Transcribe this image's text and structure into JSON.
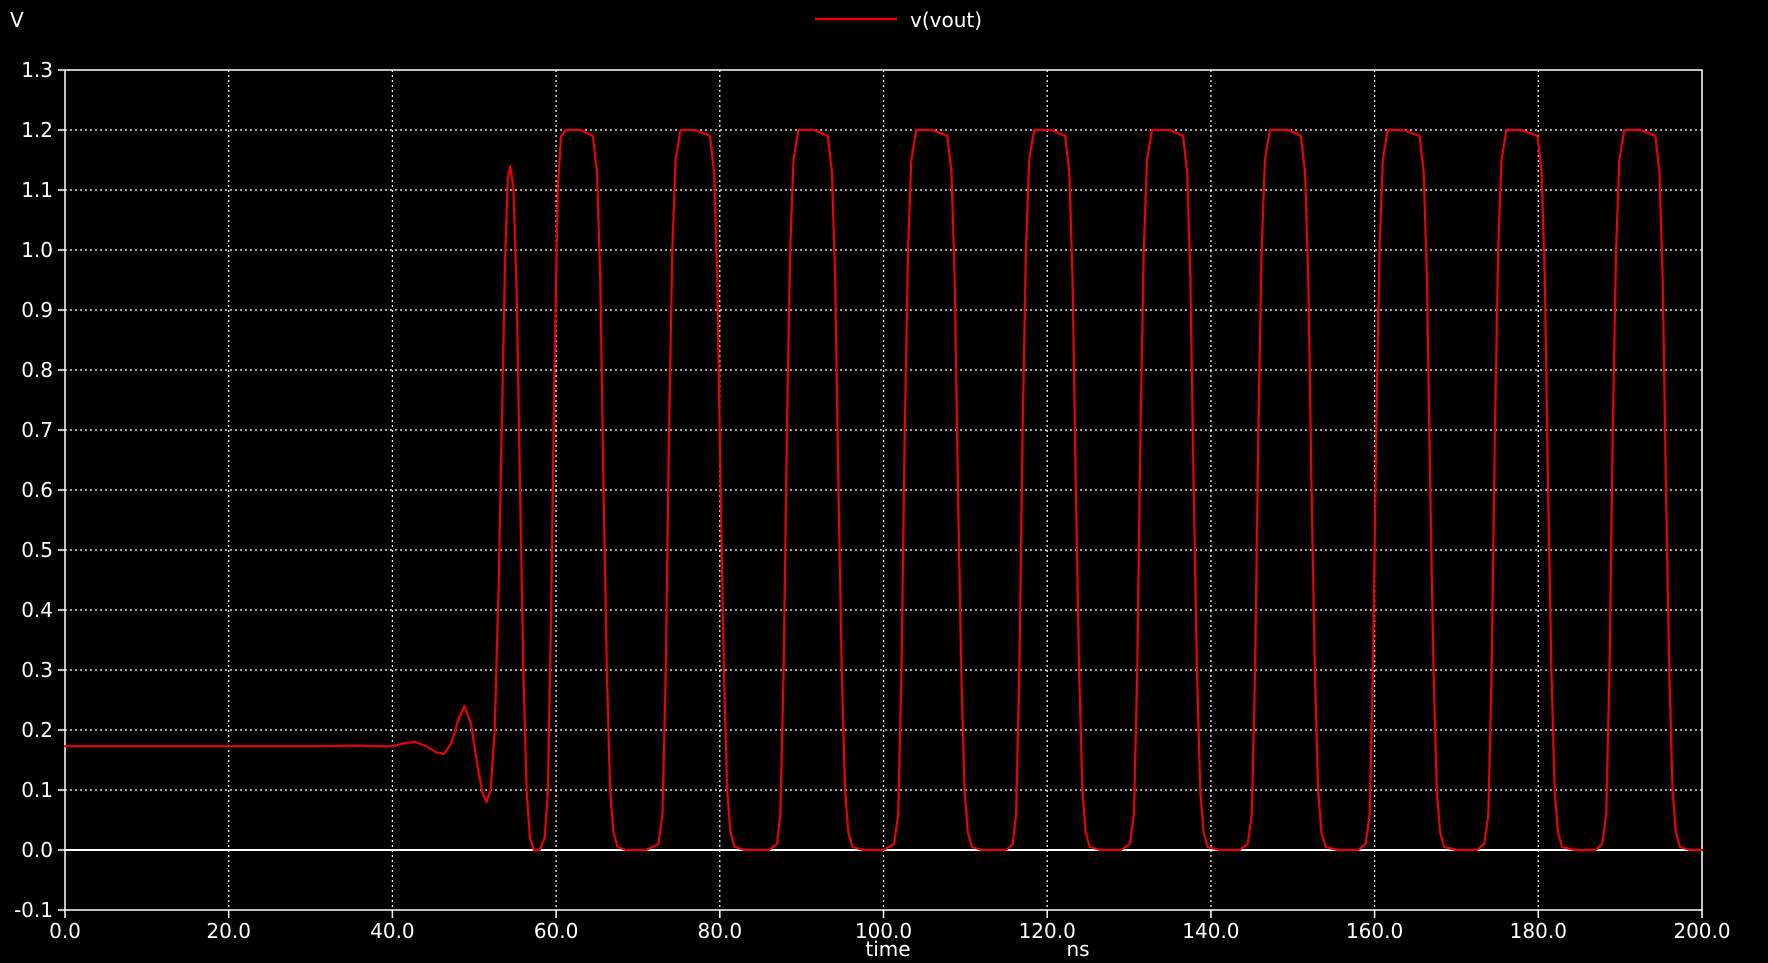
{
  "chart_data": {
    "type": "line",
    "ylabel": "V",
    "xlabel": "time",
    "xunit": "ns",
    "xlim": [
      0,
      200
    ],
    "ylim": [
      -0.1,
      1.3
    ],
    "xticks": [
      "0.0",
      "20.0",
      "40.0",
      "60.0",
      "80.0",
      "100.0",
      "120.0",
      "140.0",
      "160.0",
      "180.0",
      "200.0"
    ],
    "yticks": [
      "-0.1",
      "0.0",
      "0.1",
      "0.2",
      "0.3",
      "0.4",
      "0.5",
      "0.6",
      "0.7",
      "0.8",
      "0.9",
      "1.0",
      "1.1",
      "1.2",
      "1.3"
    ],
    "grid": true,
    "legend_position": "top-center",
    "series": [
      {
        "name": "v(vout)",
        "color": "#e8000b",
        "x": [
          0,
          10,
          20,
          30,
          36,
          38,
          40,
          41.5,
          42.8,
          44,
          45.3,
          46.3,
          47.2,
          48,
          48.8,
          49.6,
          50.4,
          51,
          51.5,
          52,
          52.5,
          53,
          53.5,
          53.8,
          54.1,
          54.4,
          54.8,
          55.2,
          55.6,
          56,
          56.4,
          56.8,
          57.3,
          58,
          58.6,
          59,
          59.4,
          59.8,
          60.2,
          60.6,
          61.2,
          63,
          64.5,
          65,
          65.4,
          65.8,
          66.2,
          66.6,
          67,
          67.5,
          68.5,
          71,
          72.5,
          73,
          73.4,
          73.8,
          74.2,
          74.6,
          75.2,
          77,
          78.8,
          79.3,
          79.7,
          80.1,
          80.5,
          80.9,
          81.3,
          81.8,
          83,
          86,
          87,
          87.4,
          87.8,
          88.2,
          88.6,
          89,
          89.6,
          91.5,
          93.2,
          93.7,
          94.1,
          94.5,
          94.9,
          95.3,
          95.7,
          96.2,
          97.5,
          100,
          101.3,
          101.8,
          102.2,
          102.6,
          103,
          103.4,
          104,
          106,
          107.8,
          108.3,
          108.7,
          109.1,
          109.5,
          109.9,
          110.3,
          110.8,
          112,
          115,
          115.8,
          116.2,
          116.6,
          117,
          117.4,
          117.8,
          118.4,
          120.5,
          122.2,
          122.7,
          123.1,
          123.5,
          123.9,
          124.3,
          124.7,
          125.2,
          126.5,
          129,
          130.1,
          130.6,
          131,
          131.4,
          131.8,
          132.2,
          132.8,
          135,
          136.6,
          137.1,
          137.5,
          137.9,
          138.3,
          138.7,
          139.1,
          139.6,
          141,
          143.5,
          144.5,
          145,
          145.4,
          145.8,
          146.2,
          146.6,
          147.2,
          149.5,
          151,
          151.5,
          151.9,
          152.3,
          152.7,
          153.1,
          153.5,
          154,
          155.5,
          158,
          158.9,
          159.4,
          159.8,
          160.2,
          160.6,
          161,
          161.6,
          163.5,
          165.5,
          166,
          166.4,
          166.8,
          167.2,
          167.6,
          168,
          168.5,
          170,
          172.5,
          173.4,
          173.9,
          174.3,
          174.7,
          175.1,
          175.5,
          176.1,
          178,
          179.9,
          180.4,
          180.8,
          181.2,
          181.6,
          182,
          182.4,
          182.9,
          184.5,
          187,
          187.8,
          188.3,
          188.7,
          189.1,
          189.5,
          189.9,
          190.5,
          192.5,
          194.3,
          194.8,
          195.2,
          195.6,
          196,
          196.4,
          196.8,
          197.3,
          198.5,
          200
        ],
        "values": [
          0.173,
          0.173,
          0.173,
          0.173,
          0.174,
          0.173,
          0.173,
          0.178,
          0.18,
          0.174,
          0.163,
          0.16,
          0.178,
          0.215,
          0.24,
          0.21,
          0.14,
          0.095,
          0.08,
          0.1,
          0.2,
          0.45,
          0.8,
          1.0,
          1.12,
          1.14,
          1.1,
          0.92,
          0.6,
          0.3,
          0.1,
          0.02,
          0.0,
          0.0,
          0.02,
          0.1,
          0.4,
          0.8,
          1.1,
          1.19,
          1.2,
          1.2,
          1.19,
          1.13,
          0.95,
          0.6,
          0.3,
          0.1,
          0.03,
          0.005,
          0.0,
          0.0,
          0.01,
          0.06,
          0.3,
          0.7,
          1.0,
          1.15,
          1.2,
          1.2,
          1.19,
          1.13,
          0.95,
          0.6,
          0.3,
          0.1,
          0.03,
          0.005,
          0.0,
          0.0,
          0.01,
          0.06,
          0.3,
          0.7,
          1.0,
          1.15,
          1.2,
          1.2,
          1.19,
          1.13,
          0.95,
          0.6,
          0.3,
          0.1,
          0.03,
          0.005,
          0.0,
          0.0,
          0.01,
          0.06,
          0.3,
          0.7,
          1.0,
          1.15,
          1.2,
          1.2,
          1.19,
          1.13,
          0.95,
          0.6,
          0.3,
          0.1,
          0.03,
          0.005,
          0.0,
          0.0,
          0.01,
          0.06,
          0.3,
          0.7,
          1.0,
          1.15,
          1.2,
          1.2,
          1.19,
          1.13,
          0.95,
          0.6,
          0.3,
          0.1,
          0.03,
          0.005,
          0.0,
          0.0,
          0.01,
          0.06,
          0.3,
          0.7,
          1.0,
          1.15,
          1.2,
          1.2,
          1.19,
          1.13,
          0.95,
          0.6,
          0.3,
          0.1,
          0.03,
          0.005,
          0.0,
          0.0,
          0.01,
          0.06,
          0.3,
          0.7,
          1.0,
          1.15,
          1.2,
          1.2,
          1.19,
          1.13,
          0.95,
          0.6,
          0.3,
          0.1,
          0.03,
          0.005,
          0.0,
          0.0,
          0.01,
          0.06,
          0.3,
          0.7,
          1.0,
          1.15,
          1.2,
          1.2,
          1.19,
          1.13,
          0.95,
          0.6,
          0.3,
          0.1,
          0.03,
          0.005,
          0.0,
          0.0,
          0.01,
          0.06,
          0.3,
          0.7,
          1.0,
          1.15,
          1.2,
          1.2,
          1.19,
          1.13,
          0.95,
          0.6,
          0.3,
          0.1,
          0.03,
          0.005,
          0.0,
          0.0,
          0.01,
          0.06,
          0.3,
          0.7,
          1.0,
          1.15,
          1.2,
          1.2,
          1.19,
          1.13,
          0.95,
          0.6,
          0.3,
          0.1,
          0.03,
          0.005,
          0.0,
          0.0
        ]
      }
    ]
  }
}
